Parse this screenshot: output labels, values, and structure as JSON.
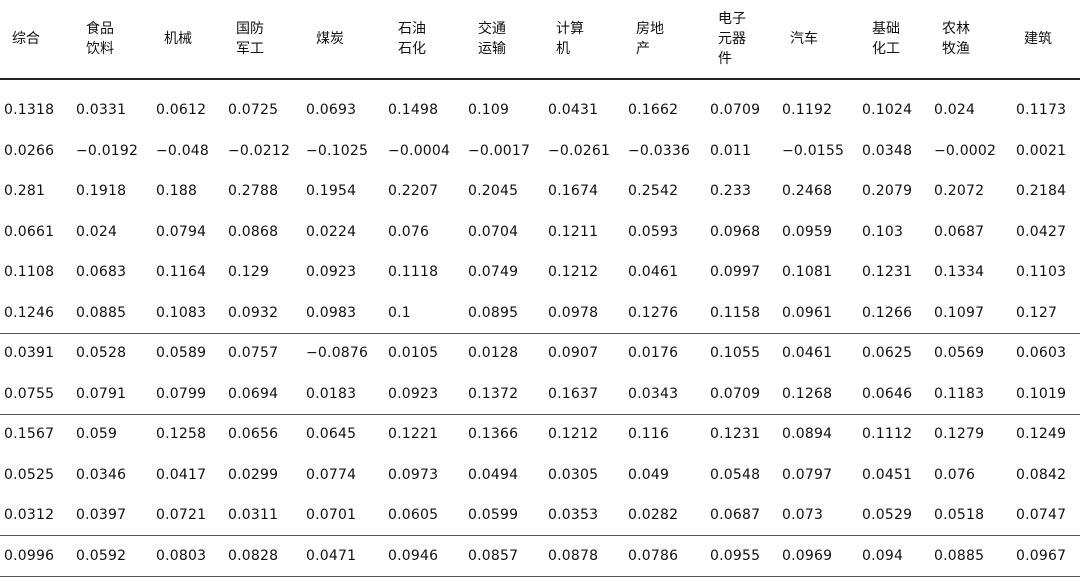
{
  "table": {
    "headers": [
      "综合",
      "食品\n饮料",
      "机械",
      "国防\n军工",
      "煤炭",
      "石油\n石化",
      "交通\n运输",
      "计算\n机",
      "房地\n产",
      "电子\n元器\n件",
      "汽车",
      "基础\n化工",
      "农林\n牧渔",
      "建筑"
    ],
    "rows": [
      [
        "0.1318",
        "0.0331",
        "0.0612",
        "0.0725",
        "0.0693",
        "0.1498",
        "0.109",
        "0.0431",
        "0.1662",
        "0.0709",
        "0.1192",
        "0.1024",
        "0.024",
        "0.1173"
      ],
      [
        "0.0266",
        "−0.0192",
        "−0.048",
        "−0.0212",
        "−0.1025",
        "−0.0004",
        "−0.0017",
        "−0.0261",
        "−0.0336",
        "0.011",
        "−0.0155",
        "0.0348",
        "−0.0002",
        "0.0021"
      ],
      [
        "0.281",
        "0.1918",
        "0.188",
        "0.2788",
        "0.1954",
        "0.2207",
        "0.2045",
        "0.1674",
        "0.2542",
        "0.233",
        "0.2468",
        "0.2079",
        "0.2072",
        "0.2184"
      ],
      [
        "0.0661",
        "0.024",
        "0.0794",
        "0.0868",
        "0.0224",
        "0.076",
        "0.0704",
        "0.1211",
        "0.0593",
        "0.0968",
        "0.0959",
        "0.103",
        "0.0687",
        "0.0427"
      ],
      [
        "0.1108",
        "0.0683",
        "0.1164",
        "0.129",
        "0.0923",
        "0.1118",
        "0.0749",
        "0.1212",
        "0.0461",
        "0.0997",
        "0.1081",
        "0.1231",
        "0.1334",
        "0.1103"
      ],
      [
        "0.1246",
        "0.0885",
        "0.1083",
        "0.0932",
        "0.0983",
        "0.1",
        "0.0895",
        "0.0978",
        "0.1276",
        "0.1158",
        "0.0961",
        "0.1266",
        "0.1097",
        "0.127"
      ],
      [
        "0.0391",
        "0.0528",
        "0.0589",
        "0.0757",
        "−0.0876",
        "0.0105",
        "0.0128",
        "0.0907",
        "0.0176",
        "0.1055",
        "0.0461",
        "0.0625",
        "0.0569",
        "0.0603"
      ],
      [
        "0.0755",
        "0.0791",
        "0.0799",
        "0.0694",
        "0.0183",
        "0.0923",
        "0.1372",
        "0.1637",
        "0.0343",
        "0.0709",
        "0.1268",
        "0.0646",
        "0.1183",
        "0.1019"
      ],
      [
        "0.1567",
        "0.059",
        "0.1258",
        "0.0656",
        "0.0645",
        "0.1221",
        "0.1366",
        "0.1212",
        "0.116",
        "0.1231",
        "0.0894",
        "0.1112",
        "0.1279",
        "0.1249"
      ],
      [
        "0.0525",
        "0.0346",
        "0.0417",
        "0.0299",
        "0.0774",
        "0.0973",
        "0.0494",
        "0.0305",
        "0.049",
        "0.0548",
        "0.0797",
        "0.0451",
        "0.076",
        "0.0842"
      ],
      [
        "0.0312",
        "0.0397",
        "0.0721",
        "0.0311",
        "0.0701",
        "0.0605",
        "0.0599",
        "0.0353",
        "0.0282",
        "0.0687",
        "0.073",
        "0.0529",
        "0.0518",
        "0.0747"
      ],
      [
        "0.0996",
        "0.0592",
        "0.0803",
        "0.0828",
        "0.0471",
        "0.0946",
        "0.0857",
        "0.0878",
        "0.0786",
        "0.0955",
        "0.0969",
        "0.094",
        "0.0885",
        "0.0967"
      ]
    ]
  }
}
